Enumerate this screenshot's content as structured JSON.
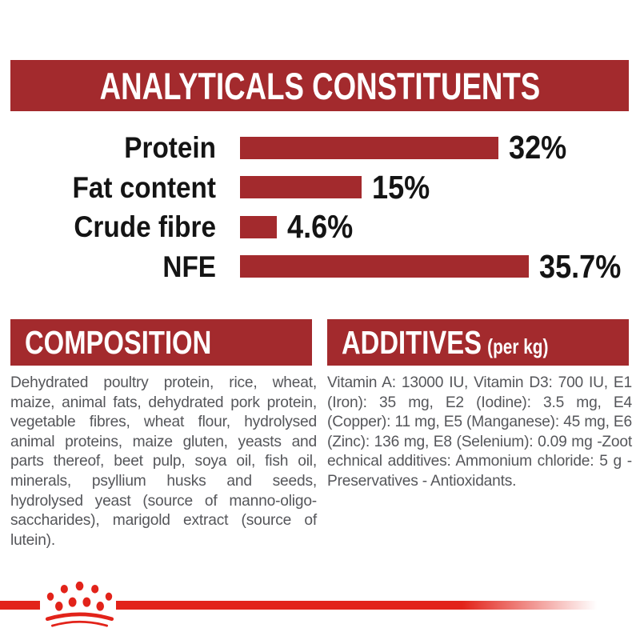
{
  "colors": {
    "banner_red": "#A32A2D",
    "bar_red": "#A32A2D",
    "logo_red": "#E2231A",
    "label_black": "#141414",
    "body_gray": "#55565A"
  },
  "header": {
    "title": "ANALYTICALS CONSTITUENTS"
  },
  "chart_data": {
    "type": "bar",
    "orientation": "horizontal",
    "title": "ANALYTICALS CONSTITUENTS",
    "categories": [
      "Protein",
      "Fat content",
      "Crude fibre",
      "NFE"
    ],
    "values": [
      32,
      15,
      4.6,
      35.7
    ],
    "value_labels": [
      "32%",
      "15%",
      "4.6%",
      "35.7%"
    ],
    "unit": "%",
    "xlim": [
      0,
      40
    ],
    "grid": false,
    "legend": false,
    "bar_color": "#A32A2D"
  },
  "composition": {
    "title": "COMPOSITION",
    "body": "Dehydrated poultry protein, rice, wheat, maize, animal fats, dehydrated pork protein, vegetable fibres, wheat flour, hydrolysed animal proteins, maize gluten, yeasts and parts thereof, beet pulp, soya oil, fish oil, minerals, psyllium husks and seeds, hydrolysed yeast (source of manno-oligo-saccharides), marigold extract (source of lutein)."
  },
  "additives": {
    "title": "ADDITIVES",
    "title_suffix": "(per kg)",
    "body": "Vitamin A: 13000 IU, Vitamin D3: 700 IU, E1 (Iron): 35 mg, E2 (Iodine): 3.5 mg, E4 (Copper): 11 mg, E5 (Manganese): 45 mg, E6 (Zinc): 136 mg, E8 (Selenium): 0.09 mg -Zoot echnical additives: Ammonium chloride: 5 g - Preservatives - Antioxidants."
  },
  "footer": {
    "logo": "royal-canin-crown-logo"
  }
}
